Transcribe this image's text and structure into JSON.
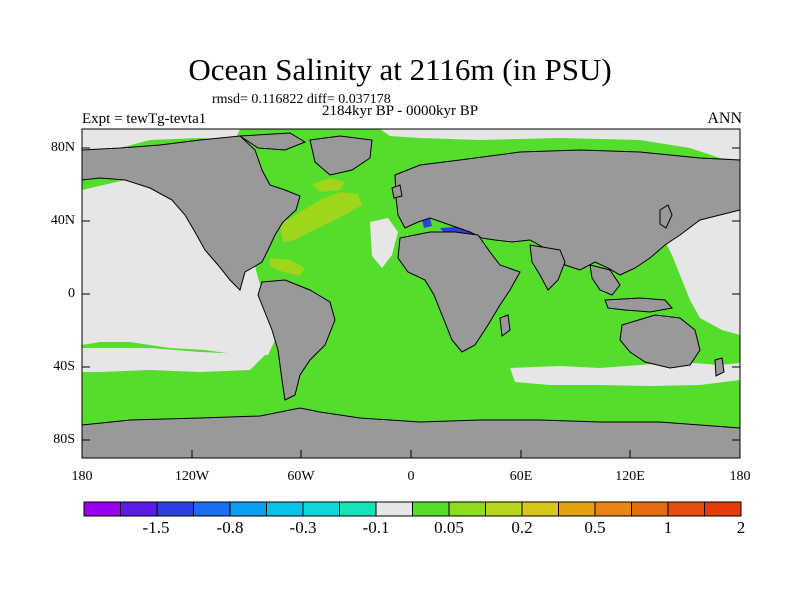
{
  "title": "Ocean Salinity at 2116m (in PSU)",
  "stats_line": "rmsd= 0.116822 diff= 0.037178",
  "period_line": "2184kyr BP - 0000kyr BP",
  "experiment_label": "Expt = tewTg-tevta1",
  "season_label": "ANN",
  "map": {
    "projection": "cylindrical equidistant",
    "lon_range": [
      -180,
      180
    ],
    "lat_range": [
      -90,
      90
    ],
    "y_ticks": [
      "80N",
      "40N",
      "0",
      "40S",
      "80S"
    ],
    "x_ticks": [
      "180",
      "120W",
      "60W",
      "0",
      "60E",
      "120E",
      "180"
    ],
    "land_color": "#999999",
    "coastline_color": "#000000"
  },
  "colorbar": {
    "labels": [
      "-1.5",
      "-0.8",
      "-0.3",
      "-0.1",
      "0.05",
      "0.2",
      "0.5",
      "1",
      "2"
    ],
    "colors": [
      "#9a00ee",
      "#5a1de6",
      "#2d3fe2",
      "#1a6ef0",
      "#0c9ff0",
      "#0ac1e8",
      "#10d8d8",
      "#15e3b8",
      "#e6e6e6",
      "#55dd2e",
      "#8ddd1e",
      "#b6d71e",
      "#d6c81a",
      "#e3a10f",
      "#e88513",
      "#e66a10",
      "#e54e10",
      "#e63a0a"
    ]
  },
  "legend_colors": {
    "near_zero": "#e6e6e6",
    "small_positive": "#55dd2e",
    "medium_positive": "#9fd51a",
    "negative": "#2d3fe2",
    "light_negative": "#10d8d8"
  }
}
